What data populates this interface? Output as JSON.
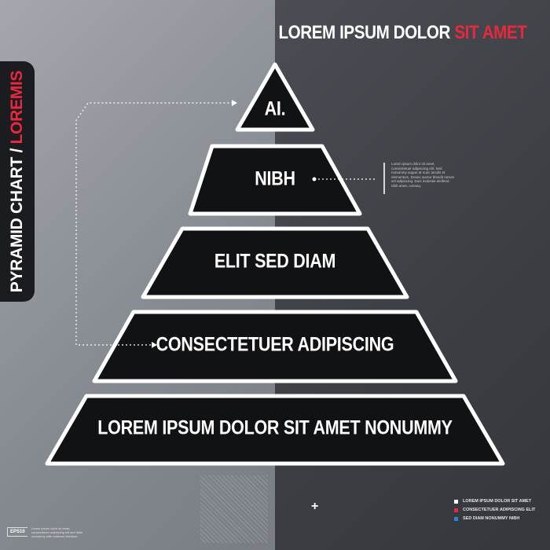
{
  "title": {
    "part1": "LOREM IPSUM DOLOR ",
    "part2": "SIT AMET"
  },
  "side_tab": {
    "part1": "PYRAMID CHART / ",
    "part2": "LOREMIS"
  },
  "pyramid": {
    "levels": [
      {
        "label": "AI."
      },
      {
        "label": "NIBH"
      },
      {
        "label": "ELIT SED DIAM"
      },
      {
        "label": "CONSECTETUER ADIPISCING"
      },
      {
        "label": "LOREM IPSUM DOLOR SIT AMET NONUMMY"
      }
    ]
  },
  "note": {
    "text": "Lorem ipsum dolor sit amet, consectetuer adipiscing elit. Sed nonummy augue at nunc iaculis et elementum. Donec auctor blandit rutrum vel adipiscing. Duis molestie eleifend nibh amet, conseq."
  },
  "legend": {
    "items": [
      {
        "label": "LOREM IPSUM DOLOR SIT AMET",
        "color": "#ffffff"
      },
      {
        "label": "CONSECTETUER ADIPISCING ELIT",
        "color": "#e8283e"
      },
      {
        "label": "SED DIAM NONUMMY NIBH",
        "color": "#2f7fe0"
      }
    ]
  },
  "footer": {
    "badge": "EPS10",
    "text": "Lorem ipsum dolor sit amet, consectetuer adipiscing elit sed diam nonummy nibh euismod tincidunt."
  },
  "plus_symbol": "+",
  "colors": {
    "accent": "#e8283e",
    "level_fill": "#111214",
    "outline": "#ffffff"
  }
}
